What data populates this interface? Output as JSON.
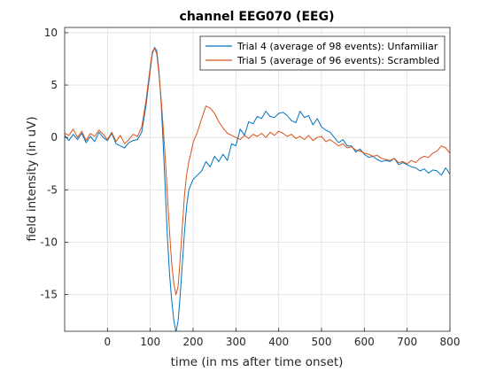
{
  "chart_data": {
    "type": "line",
    "title": "channel EEG070 (EEG)",
    "xlabel": "time (in ms after time onset)",
    "ylabel": "field intensity (in uV)",
    "xlim": [
      -100,
      800
    ],
    "ylim": [
      -18.5,
      10.5
    ],
    "xticks": [
      0,
      100,
      200,
      300,
      400,
      500,
      600,
      700,
      800
    ],
    "yticks": [
      -15,
      -10,
      -5,
      0,
      5,
      10
    ],
    "grid": true,
    "legend_position": "top-right",
    "series": [
      {
        "name": "Trial 4 (average of 98 events): Unfamiliar",
        "color": "#0072BD",
        "x": [
          -100,
          -90,
          -80,
          -70,
          -60,
          -50,
          -40,
          -30,
          -20,
          -10,
          0,
          10,
          20,
          30,
          40,
          50,
          60,
          70,
          80,
          90,
          100,
          105,
          110,
          115,
          120,
          125,
          130,
          135,
          140,
          145,
          150,
          155,
          160,
          165,
          170,
          175,
          180,
          185,
          190,
          195,
          200,
          210,
          220,
          230,
          240,
          250,
          260,
          270,
          280,
          290,
          300,
          310,
          320,
          330,
          340,
          350,
          360,
          370,
          380,
          390,
          400,
          410,
          420,
          430,
          440,
          450,
          460,
          470,
          480,
          490,
          500,
          510,
          520,
          530,
          540,
          550,
          560,
          570,
          580,
          590,
          600,
          610,
          620,
          630,
          640,
          650,
          660,
          670,
          680,
          690,
          700,
          710,
          720,
          730,
          740,
          750,
          760,
          770,
          780,
          790,
          800
        ],
        "values": [
          0.2,
          -0.3,
          0.3,
          -0.2,
          0.4,
          -0.5,
          0.1,
          -0.4,
          0.5,
          0.0,
          -0.3,
          0.4,
          -0.6,
          -0.8,
          -1.0,
          -0.5,
          -0.3,
          -0.2,
          0.5,
          3.0,
          6.5,
          8.0,
          8.6,
          8.3,
          6.5,
          3.5,
          -0.5,
          -5.0,
          -9.5,
          -13.0,
          -15.5,
          -17.5,
          -18.6,
          -17.5,
          -15.0,
          -12.0,
          -9.0,
          -6.5,
          -5.0,
          -4.5,
          -4.0,
          -3.6,
          -3.2,
          -2.3,
          -2.8,
          -1.8,
          -2.3,
          -1.6,
          -2.2,
          -0.6,
          -0.8,
          0.8,
          0.2,
          1.5,
          1.3,
          2.0,
          1.8,
          2.5,
          2.0,
          1.9,
          2.3,
          2.4,
          2.1,
          1.6,
          1.4,
          2.5,
          1.9,
          2.1,
          1.2,
          1.8,
          1.0,
          0.7,
          0.5,
          0.0,
          -0.5,
          -0.2,
          -0.8,
          -0.8,
          -1.4,
          -1.1,
          -1.6,
          -1.9,
          -1.8,
          -2.1,
          -2.3,
          -2.2,
          -2.3,
          -2.0,
          -2.6,
          -2.4,
          -2.6,
          -2.8,
          -2.9,
          -3.2,
          -3.0,
          -3.4,
          -3.1,
          -3.2,
          -3.6,
          -2.9,
          -3.5
        ]
      },
      {
        "name": "Trial 5 (average of 96 events): Scrambled",
        "color": "#D95319",
        "x": [
          -100,
          -90,
          -80,
          -70,
          -60,
          -50,
          -40,
          -30,
          -20,
          -10,
          0,
          10,
          20,
          30,
          40,
          50,
          60,
          70,
          80,
          90,
          100,
          105,
          110,
          115,
          120,
          125,
          130,
          135,
          140,
          145,
          150,
          155,
          160,
          165,
          170,
          175,
          180,
          185,
          190,
          195,
          200,
          210,
          220,
          230,
          240,
          250,
          260,
          270,
          280,
          290,
          300,
          310,
          320,
          330,
          340,
          350,
          360,
          370,
          380,
          390,
          400,
          410,
          420,
          430,
          440,
          450,
          460,
          470,
          480,
          490,
          500,
          510,
          520,
          530,
          540,
          550,
          560,
          570,
          580,
          590,
          600,
          610,
          620,
          630,
          640,
          650,
          660,
          670,
          680,
          690,
          700,
          710,
          720,
          730,
          740,
          750,
          760,
          770,
          780,
          790,
          800
        ],
        "values": [
          0.4,
          0.2,
          0.8,
          0.0,
          0.6,
          -0.3,
          0.4,
          0.1,
          0.7,
          0.3,
          -0.2,
          0.5,
          -0.4,
          0.2,
          -0.6,
          -0.2,
          0.3,
          0.1,
          1.0,
          3.5,
          6.8,
          8.2,
          8.5,
          8.0,
          6.2,
          3.8,
          1.0,
          -2.0,
          -5.5,
          -9.0,
          -12.0,
          -14.0,
          -15.0,
          -14.2,
          -11.5,
          -8.5,
          -5.5,
          -3.5,
          -2.3,
          -1.5,
          -0.5,
          0.5,
          1.8,
          3.0,
          2.8,
          2.3,
          1.5,
          0.9,
          0.4,
          0.2,
          0.0,
          -0.2,
          0.2,
          -0.1,
          0.3,
          0.1,
          0.4,
          0.0,
          0.5,
          0.2,
          0.6,
          0.4,
          0.1,
          0.3,
          -0.1,
          0.1,
          -0.2,
          0.2,
          -0.3,
          0.0,
          0.1,
          -0.4,
          -0.2,
          -0.5,
          -0.8,
          -0.6,
          -1.0,
          -0.9,
          -1.2,
          -1.3,
          -1.5,
          -1.6,
          -1.8,
          -1.7,
          -2.0,
          -2.1,
          -2.2,
          -2.0,
          -2.4,
          -2.3,
          -2.5,
          -2.2,
          -2.4,
          -2.0,
          -1.8,
          -1.9,
          -1.5,
          -1.3,
          -0.8,
          -1.0,
          -1.5
        ]
      }
    ]
  }
}
